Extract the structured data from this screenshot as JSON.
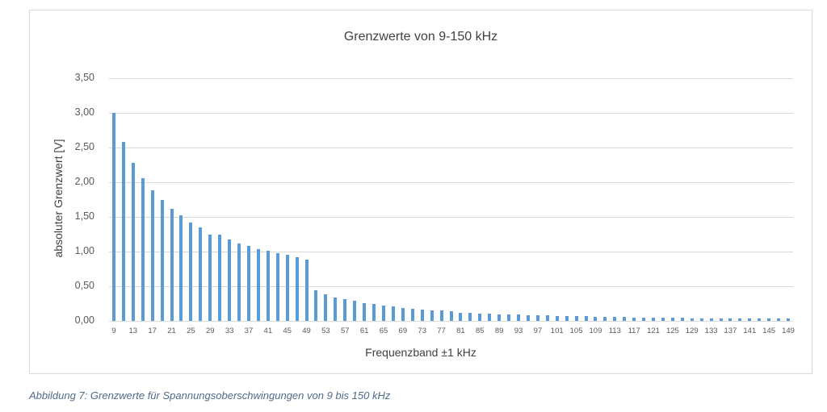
{
  "chart_data": {
    "type": "bar",
    "title": "Grenzwerte von 9-150 kHz",
    "xlabel": "Frequenzband ±1 kHz",
    "ylabel": "absoluter Grenzwert [V]",
    "ylim": [
      0,
      3.5
    ],
    "yticks": [
      "0,00",
      "0,50",
      "1,00",
      "1,50",
      "2,00",
      "2,50",
      "3,00",
      "3,50"
    ],
    "grid": true,
    "legend": "none",
    "categories": [
      9,
      11,
      13,
      15,
      17,
      19,
      21,
      23,
      25,
      27,
      29,
      31,
      33,
      35,
      37,
      39,
      41,
      43,
      45,
      47,
      49,
      51,
      53,
      55,
      57,
      59,
      61,
      63,
      65,
      67,
      69,
      71,
      73,
      75,
      77,
      79,
      81,
      83,
      85,
      87,
      89,
      91,
      93,
      95,
      97,
      99,
      101,
      103,
      105,
      107,
      109,
      111,
      113,
      115,
      117,
      119,
      121,
      123,
      125,
      127,
      129,
      131,
      133,
      135,
      137,
      139,
      141,
      143,
      145,
      147,
      149
    ],
    "xtick_labels": [
      "9",
      "13",
      "17",
      "21",
      "25",
      "29",
      "33",
      "37",
      "41",
      "45",
      "49",
      "53",
      "57",
      "61",
      "65",
      "69",
      "73",
      "77",
      "81",
      "85",
      "89",
      "93",
      "97",
      "101",
      "105",
      "109",
      "113",
      "117",
      "121",
      "125",
      "129",
      "133",
      "137",
      "141",
      "145",
      "149"
    ],
    "values": [
      3.0,
      2.58,
      2.28,
      2.06,
      1.88,
      1.74,
      1.62,
      1.52,
      1.42,
      1.35,
      1.25,
      1.25,
      1.17,
      1.12,
      1.08,
      1.04,
      1.01,
      0.98,
      0.95,
      0.92,
      0.88,
      0.44,
      0.38,
      0.34,
      0.31,
      0.29,
      0.26,
      0.24,
      0.22,
      0.21,
      0.19,
      0.18,
      0.16,
      0.15,
      0.15,
      0.14,
      0.12,
      0.12,
      0.11,
      0.1,
      0.09,
      0.09,
      0.09,
      0.08,
      0.08,
      0.08,
      0.07,
      0.07,
      0.07,
      0.07,
      0.06,
      0.06,
      0.06,
      0.06,
      0.05,
      0.05,
      0.05,
      0.05,
      0.05,
      0.05,
      0.04,
      0.04,
      0.04,
      0.04,
      0.04,
      0.04,
      0.04,
      0.03,
      0.03,
      0.03,
      0.03
    ],
    "bar_color": "#5b9bd5"
  },
  "caption": "Abbildung 7: Grenzwerte für Spannungsoberschwingungen von 9 bis 150 kHz"
}
